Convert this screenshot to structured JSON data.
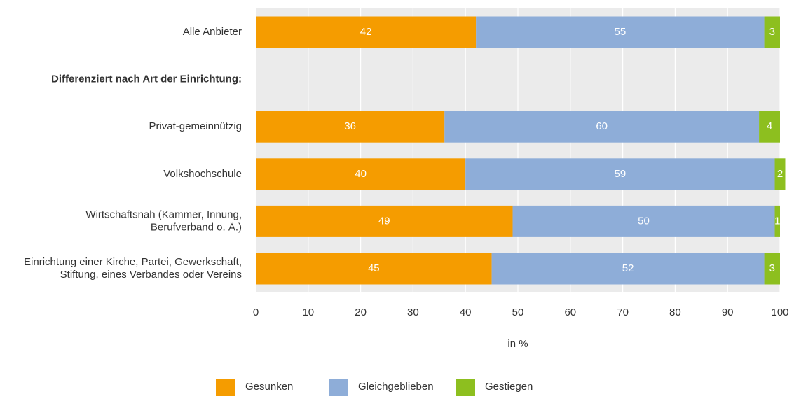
{
  "chart_data": {
    "type": "stacked-bar-horizontal",
    "categories": [
      "Alle Anbieter",
      "Differenziert nach Art der Einrichtung:",
      "Privat-gemeinnützig",
      "Volkshochschule",
      "Wirtschaftsnah (Kammer, Innung,\nBerufverband o. Ä.)",
      "Einrichtung einer Kirche, Partei, Gewerkschaft,\nStiftung, eines Verbandes oder Vereins"
    ],
    "series": [
      {
        "name": "Gesunken",
        "color": "#f59c00",
        "values": [
          42,
          null,
          36,
          40,
          49,
          45
        ]
      },
      {
        "name": "Gleichgeblieben",
        "color": "#8eadd8",
        "values": [
          55,
          null,
          60,
          59,
          50,
          52
        ]
      },
      {
        "name": "Gestiegen",
        "color": "#8dbf1f",
        "values": [
          3,
          null,
          4,
          2,
          1,
          3
        ]
      }
    ],
    "xlabel": "in %",
    "xlim": [
      0,
      100
    ],
    "xticks": [
      0,
      10,
      20,
      30,
      40,
      50,
      60,
      70,
      80,
      90,
      100
    ],
    "grid": true,
    "legend": "bottom"
  }
}
